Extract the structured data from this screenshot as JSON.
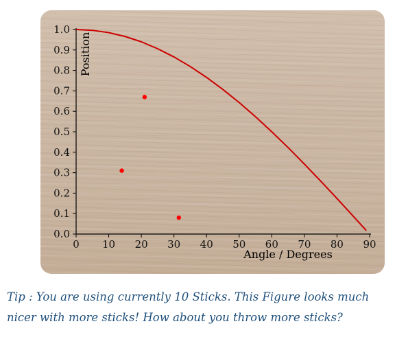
{
  "colors": {
    "curve": "#cc0000",
    "points": "#ff0000",
    "axis": "#000000",
    "tip_text": "#1f4f7a"
  },
  "chart_data": {
    "type": "scatter",
    "xlabel": "Angle / Degrees",
    "ylabel": "Position",
    "xlim": [
      0,
      90
    ],
    "ylim": [
      0.0,
      1.0
    ],
    "xticks": [
      "0",
      "10",
      "20",
      "30",
      "40",
      "50",
      "60",
      "70",
      "80",
      "90"
    ],
    "yticks": [
      "0.0",
      "0.1",
      "0.2",
      "0.3",
      "0.4",
      "0.5",
      "0.6",
      "0.7",
      "0.8",
      "0.9",
      "1.0"
    ],
    "grid": false,
    "curve": {
      "function": "cos",
      "x": [
        0,
        5,
        10,
        15,
        20,
        25,
        30,
        35,
        40,
        45,
        50,
        55,
        60,
        65,
        70,
        75,
        80,
        85,
        89
      ],
      "y": [
        1.0,
        0.996,
        0.985,
        0.966,
        0.94,
        0.906,
        0.866,
        0.819,
        0.766,
        0.707,
        0.643,
        0.574,
        0.5,
        0.423,
        0.342,
        0.259,
        0.174,
        0.087,
        0.017
      ]
    },
    "points": [
      {
        "x": 14,
        "y": 0.31
      },
      {
        "x": 21,
        "y": 0.67
      },
      {
        "x": 31.5,
        "y": 0.08
      }
    ]
  },
  "tip": {
    "text": "Tip : You are using currently 10 Sticks. This Figure looks much nicer with more sticks! How about you throw more sticks?"
  }
}
